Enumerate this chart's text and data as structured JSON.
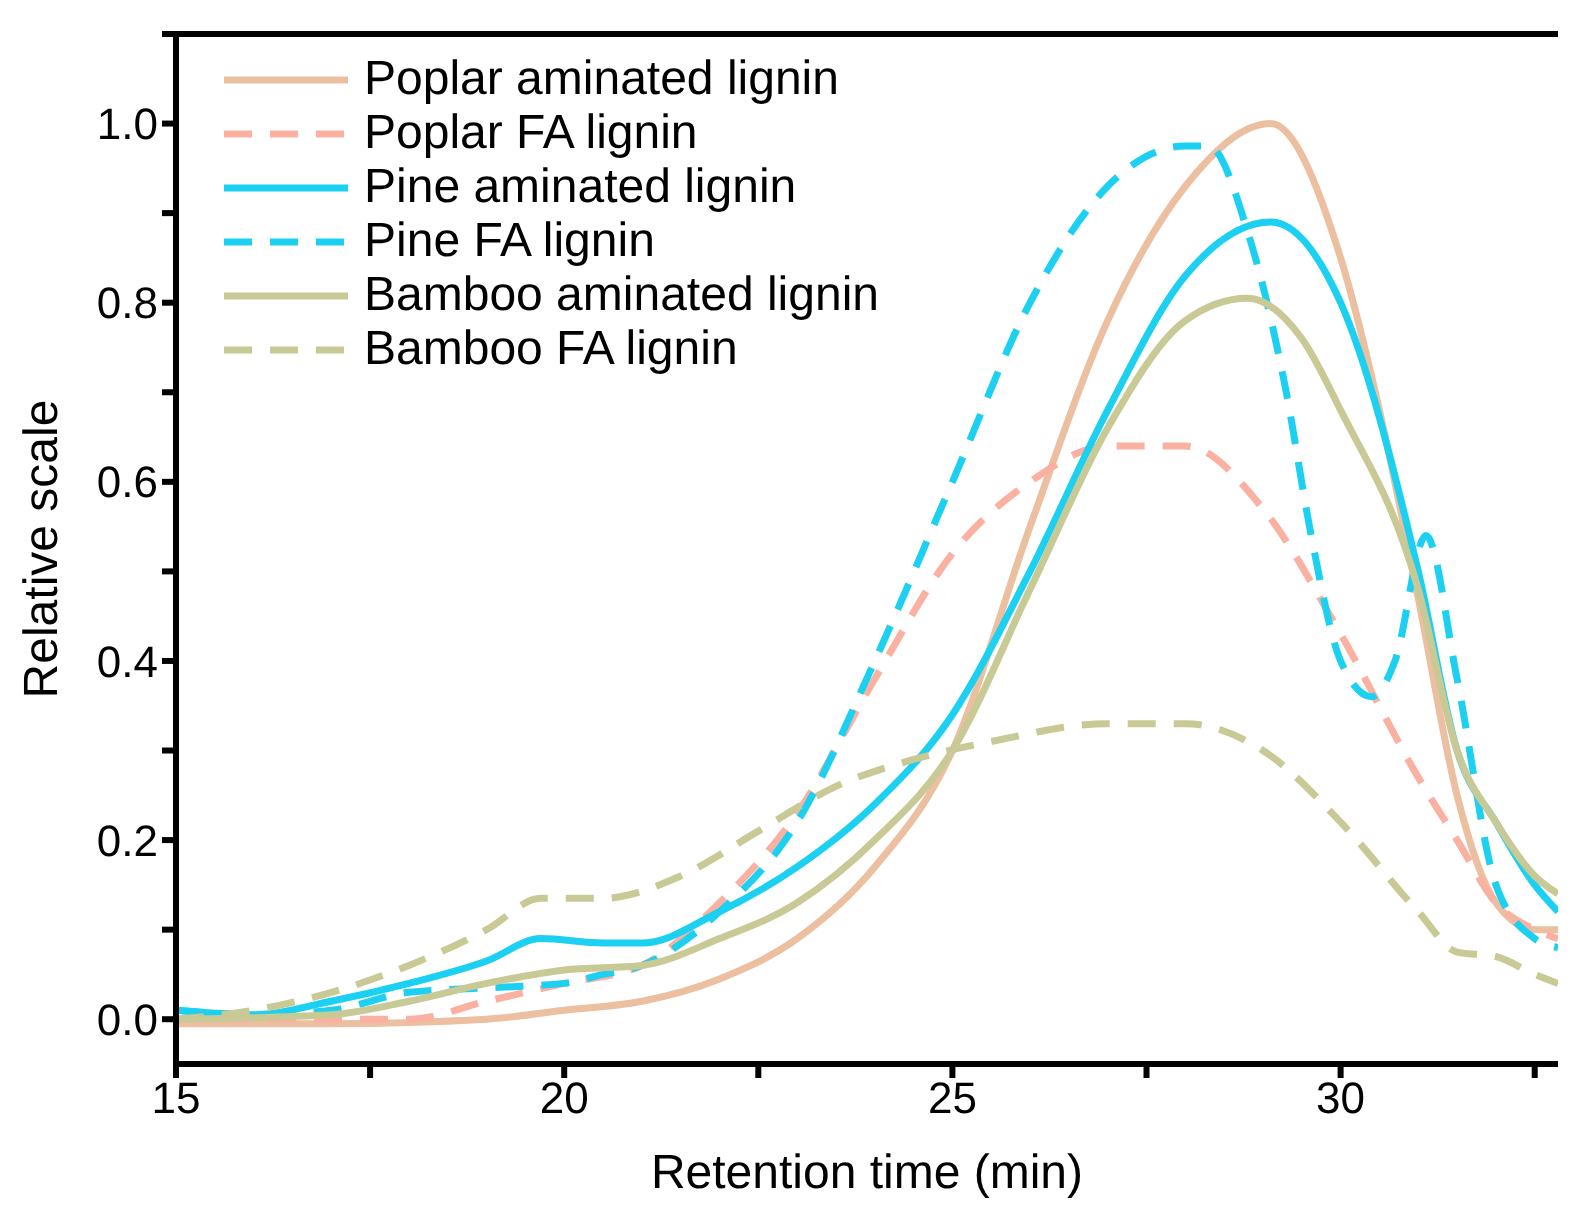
{
  "chart_data": {
    "type": "line",
    "xlabel": "Retention time (min)",
    "ylabel": "Relative scale",
    "xlim": [
      15,
      32.8
    ],
    "ylim": [
      -0.05,
      1.1
    ],
    "xticks": [
      15,
      {
        "value": 17.5,
        "label": null
      },
      20,
      {
        "value": 22.5,
        "label": null
      },
      25,
      {
        "value": 27.5,
        "label": null
      },
      30,
      {
        "value": 32.5,
        "label": null
      }
    ],
    "yticks": [
      {
        "value": 0,
        "label": "0.0"
      },
      {
        "value": 0.1,
        "label": null
      },
      {
        "value": 0.2,
        "label": "0.2"
      },
      {
        "value": 0.3,
        "label": null
      },
      {
        "value": 0.4,
        "label": "0.4"
      },
      {
        "value": 0.5,
        "label": null
      },
      {
        "value": 0.6,
        "label": "0.6"
      },
      {
        "value": 0.7,
        "label": null
      },
      {
        "value": 0.8,
        "label": "0.8"
      },
      {
        "value": 0.9,
        "label": null
      },
      {
        "value": 1,
        "label": "1.0"
      },
      {
        "value": 1.1,
        "label": null
      }
    ],
    "legend": "top left",
    "grid": false,
    "marker": "none",
    "series": [
      {
        "name": "Poplar aminated lignin",
        "color": "#ebbf9f",
        "line_style": "solid",
        "x": [
          15,
          17,
          19,
          20,
          21,
          22,
          23,
          24,
          25,
          26,
          27,
          28,
          29.1,
          30,
          30.5,
          31,
          31.5,
          32,
          32.5,
          32.8
        ],
        "values": [
          -0.005,
          -0.005,
          0,
          0.01,
          0.02,
          0.045,
          0.09,
          0.17,
          0.3,
          0.55,
          0.78,
          0.93,
          1.0,
          0.85,
          0.68,
          0.47,
          0.25,
          0.13,
          0.1,
          0.1
        ]
      },
      {
        "name": "Poplar FA lignin",
        "color": "#fbb1a1",
        "line_style": "dashed",
        "x": [
          15,
          18,
          19,
          20,
          21,
          22,
          23,
          24,
          25,
          26,
          27,
          28,
          29,
          30,
          31,
          31.5,
          32,
          32.5,
          32.8
        ],
        "values": [
          0,
          0,
          0.02,
          0.04,
          0.06,
          0.13,
          0.23,
          0.38,
          0.52,
          0.6,
          0.64,
          0.64,
          0.57,
          0.43,
          0.27,
          0.2,
          0.13,
          0.1,
          0.09
        ]
      },
      {
        "name": "Pine aminated lignin",
        "color": "#1bd0f0",
        "line_style": "solid",
        "x": [
          15,
          16,
          17,
          18,
          19,
          19.7,
          20.5,
          21,
          22,
          23,
          24,
          25,
          26,
          27,
          28,
          29.1,
          30,
          31,
          31.5,
          32,
          32.5,
          32.8
        ],
        "values": [
          0.01,
          0.005,
          0.02,
          0.04,
          0.065,
          0.09,
          0.085,
          0.085,
          0.12,
          0.17,
          0.24,
          0.34,
          0.5,
          0.68,
          0.83,
          0.89,
          0.8,
          0.5,
          0.3,
          0.22,
          0.15,
          0.12
        ]
      },
      {
        "name": "Pine FA lignin",
        "color": "#1bd0f0",
        "line_style": "dashed",
        "x": [
          15,
          16,
          17,
          18,
          19,
          20,
          20.5,
          21,
          22,
          23,
          24,
          25,
          26,
          27,
          28,
          28.3,
          28.8,
          29.3,
          29.6,
          30,
          30.4,
          30.7,
          31.1,
          31.5,
          32,
          32.5,
          32.8
        ],
        "values": [
          0.01,
          0.005,
          0.01,
          0.03,
          0.035,
          0.04,
          0.05,
          0.06,
          0.12,
          0.22,
          0.4,
          0.6,
          0.8,
          0.93,
          0.975,
          0.975,
          0.88,
          0.7,
          0.55,
          0.4,
          0.36,
          0.4,
          0.54,
          0.38,
          0.15,
          0.09,
          0.08
        ]
      },
      {
        "name": "Bamboo aminated lignin",
        "color": "#c9c996",
        "line_style": "solid",
        "x": [
          15,
          17,
          18,
          19,
          20,
          21,
          22,
          23,
          24,
          25,
          26,
          27,
          28,
          28.8,
          29.5,
          30,
          31,
          31.5,
          32,
          32.5,
          32.8
        ],
        "values": [
          0,
          0.005,
          0.02,
          0.04,
          0.055,
          0.06,
          0.09,
          0.13,
          0.2,
          0.3,
          0.48,
          0.66,
          0.78,
          0.805,
          0.76,
          0.68,
          0.48,
          0.3,
          0.22,
          0.16,
          0.14
        ]
      },
      {
        "name": "Bamboo FA lignin",
        "color": "#c9c996",
        "line_style": "dashed",
        "x": [
          15,
          16,
          17,
          18,
          19,
          19.7,
          20.5,
          21.5,
          22.5,
          23.5,
          24.5,
          25.5,
          27,
          28,
          29,
          30,
          31,
          31.5,
          32,
          32.5,
          32.8
        ],
        "values": [
          0,
          0.01,
          0.03,
          0.06,
          0.1,
          0.135,
          0.135,
          0.16,
          0.21,
          0.26,
          0.29,
          0.31,
          0.33,
          0.33,
          0.3,
          0.22,
          0.12,
          0.075,
          0.07,
          0.05,
          0.04
        ]
      }
    ]
  }
}
